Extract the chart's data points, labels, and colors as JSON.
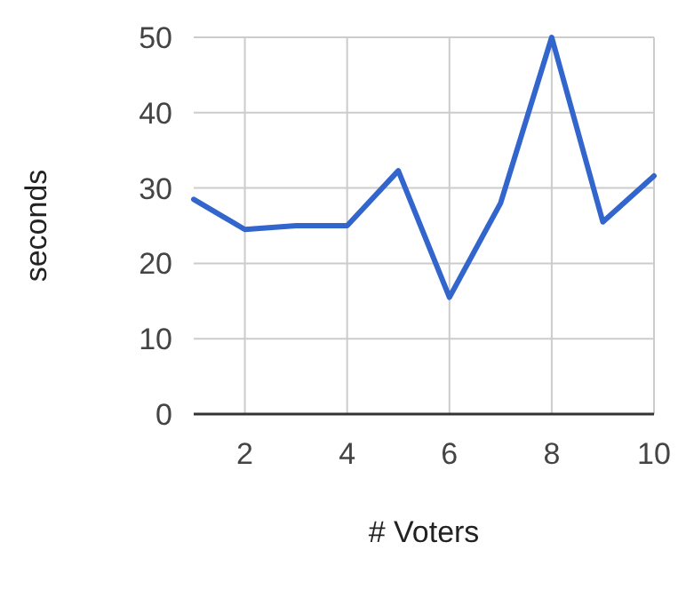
{
  "chart_data": {
    "type": "line",
    "xlabel": "# Voters",
    "ylabel": "seconds",
    "x": [
      1,
      2,
      3,
      4,
      5,
      6,
      7,
      8,
      9,
      10
    ],
    "series": [
      {
        "color": "#3366cc",
        "values": [
          28.5,
          24.5,
          25,
          25,
          32.3,
          15.5,
          28,
          50,
          25.5,
          31.6
        ]
      }
    ],
    "xlim": [
      1,
      10
    ],
    "xticks": [
      2,
      4,
      6,
      8,
      10
    ],
    "ylim": [
      0,
      50
    ],
    "yticks": [
      0,
      10,
      20,
      30,
      40,
      50
    ],
    "grid": true,
    "marker": "none",
    "line_style": "solid"
  }
}
